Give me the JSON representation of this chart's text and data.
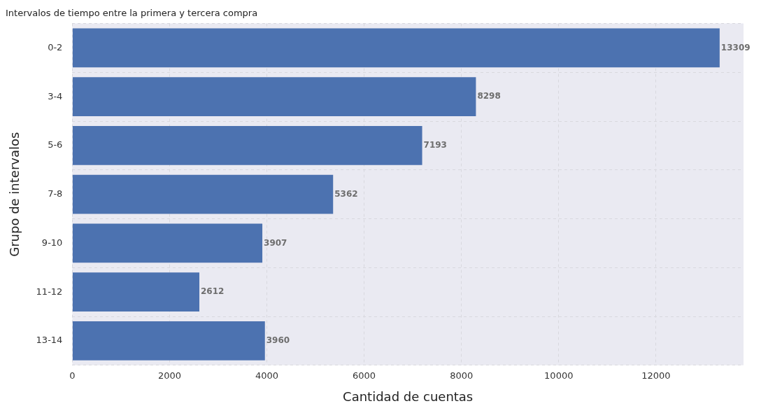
{
  "chart_data": {
    "type": "bar",
    "orientation": "horizontal",
    "title": "Intervalos de tiempo entre la primera y tercera compra",
    "xlabel": "Cantidad de cuentas",
    "ylabel": "Grupo de intervalos",
    "categories": [
      "0-2",
      "3-4",
      "5-6",
      "7-8",
      "9-10",
      "11-12",
      "13-14"
    ],
    "values": [
      13309,
      8298,
      7193,
      5362,
      3907,
      2612,
      3960
    ],
    "color": "#4c72b0",
    "xlim": [
      0,
      13800
    ],
    "xticks": [
      0,
      2000,
      4000,
      6000,
      8000,
      10000,
      12000
    ],
    "grid": true,
    "data_labels": true,
    "legend": false
  }
}
